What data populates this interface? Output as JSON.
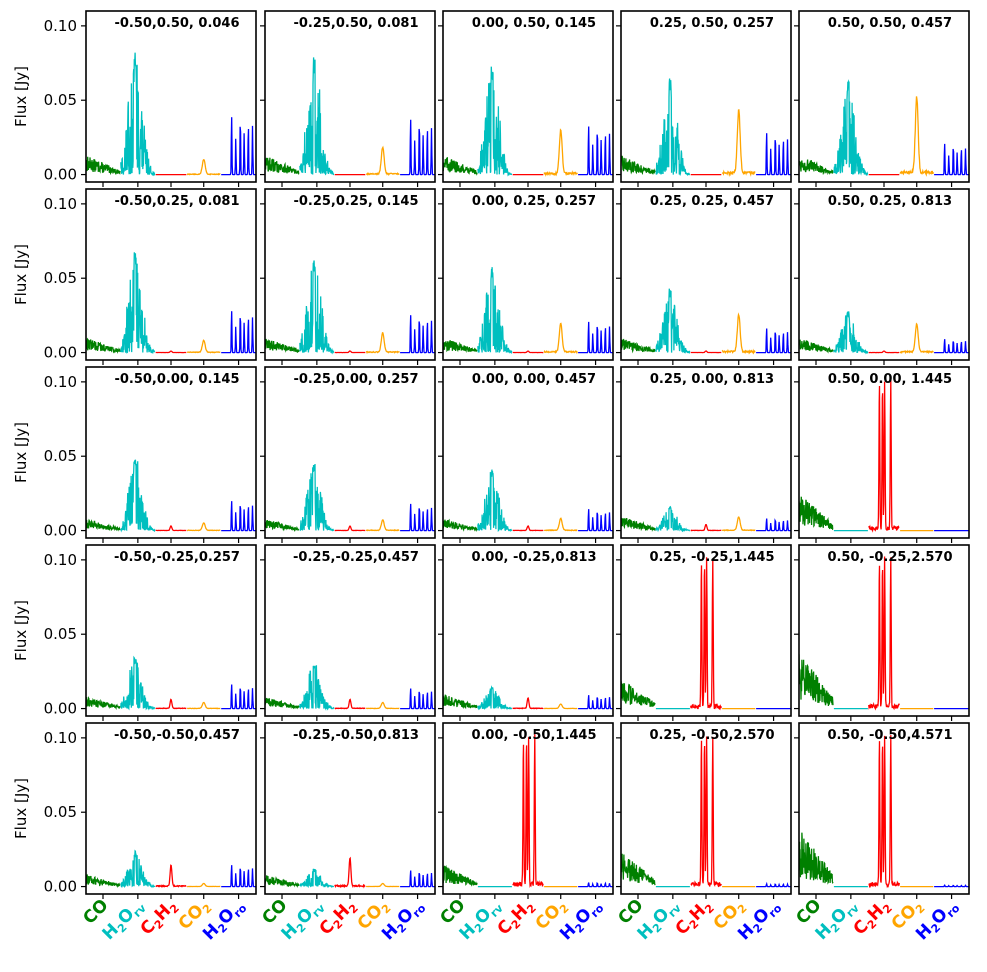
{
  "figure": {
    "ylabel": "Flux [Jy]",
    "yticks": [
      "0.00",
      "0.05",
      "0.10"
    ],
    "species_labels": [
      {
        "id": "co",
        "base": "CO",
        "sub": "",
        "after": "",
        "sub2": "",
        "color": "#008000"
      },
      {
        "id": "h2orv",
        "base": "H",
        "sub": "2",
        "after": "O",
        "sub2": "rv",
        "color": "#00bfbf"
      },
      {
        "id": "c2h2",
        "base": "C",
        "sub": "2",
        "after": "H",
        "sub2": "2",
        "color": "#ff0000"
      },
      {
        "id": "co2",
        "base": "CO",
        "sub": "2",
        "after": "",
        "sub2": "",
        "color": "#ffa500"
      },
      {
        "id": "h2oro",
        "base": "H",
        "sub": "2",
        "after": "O",
        "sub2": "ro",
        "color": "#0000ff"
      }
    ]
  },
  "chart_data": {
    "type": "line",
    "layout": "5x5 grid of small-multiple spectra panels, shared y axis",
    "ylabel": "Flux [Jy]",
    "ylim": [
      -0.005,
      0.11
    ],
    "yticks": [
      0.0,
      0.05,
      0.1
    ],
    "species": [
      "CO",
      "H2Orv",
      "C2H2",
      "CO2",
      "H2Oro"
    ],
    "species_colors": {
      "CO": "#008000",
      "H2Orv": "#00bfbf",
      "C2H2": "#ff0000",
      "CO2": "#ffa500",
      "H2Oro": "#0000ff"
    },
    "panels": [
      {
        "title": "-0.50,0.50, 0.046",
        "co_peak": 0.013,
        "h2orv_peak": 0.084,
        "c2h2_peak": 0.0,
        "co2_peak": 0.01,
        "h2oro_peak": 0.043
      },
      {
        "title": "-0.25,0.50, 0.081",
        "co_peak": 0.013,
        "h2orv_peak": 0.08,
        "c2h2_peak": 0.0,
        "co2_peak": 0.018,
        "h2oro_peak": 0.041
      },
      {
        "title": "0.00, 0.50, 0.145",
        "co_peak": 0.013,
        "h2orv_peak": 0.074,
        "c2h2_peak": 0.0,
        "co2_peak": 0.029,
        "h2oro_peak": 0.036
      },
      {
        "title": "0.25, 0.50, 0.257",
        "co_peak": 0.013,
        "h2orv_peak": 0.066,
        "c2h2_peak": 0.0,
        "co2_peak": 0.042,
        "h2oro_peak": 0.031
      },
      {
        "title": "0.50, 0.50, 0.457",
        "co_peak": 0.013,
        "h2orv_peak": 0.063,
        "c2h2_peak": 0.0,
        "co2_peak": 0.051,
        "h2oro_peak": 0.023
      },
      {
        "title": "-0.50,0.25, 0.081",
        "co_peak": 0.01,
        "h2orv_peak": 0.068,
        "c2h2_peak": 0.001,
        "co2_peak": 0.008,
        "h2oro_peak": 0.031
      },
      {
        "title": "-0.25,0.25, 0.145",
        "co_peak": 0.01,
        "h2orv_peak": 0.064,
        "c2h2_peak": 0.001,
        "co2_peak": 0.013,
        "h2oro_peak": 0.028
      },
      {
        "title": "0.00, 0.25, 0.257",
        "co_peak": 0.01,
        "h2orv_peak": 0.058,
        "c2h2_peak": 0.001,
        "co2_peak": 0.019,
        "h2oro_peak": 0.023
      },
      {
        "title": "0.25, 0.25, 0.457",
        "co_peak": 0.01,
        "h2orv_peak": 0.043,
        "c2h2_peak": 0.001,
        "co2_peak": 0.025,
        "h2oro_peak": 0.018
      },
      {
        "title": "0.50, 0.25, 0.813",
        "co_peak": 0.01,
        "h2orv_peak": 0.028,
        "c2h2_peak": 0.001,
        "co2_peak": 0.019,
        "h2oro_peak": 0.01
      },
      {
        "title": "-0.50,0.00, 0.145",
        "co_peak": 0.008,
        "h2orv_peak": 0.051,
        "c2h2_peak": 0.003,
        "co2_peak": 0.005,
        "h2oro_peak": 0.022
      },
      {
        "title": "-0.25,0.00, 0.257",
        "co_peak": 0.008,
        "h2orv_peak": 0.046,
        "c2h2_peak": 0.003,
        "co2_peak": 0.007,
        "h2oro_peak": 0.02
      },
      {
        "title": "0.00, 0.00, 0.457",
        "co_peak": 0.008,
        "h2orv_peak": 0.041,
        "c2h2_peak": 0.003,
        "co2_peak": 0.008,
        "h2oro_peak": 0.016
      },
      {
        "title": "0.25, 0.00, 0.813",
        "co_peak": 0.01,
        "h2orv_peak": 0.016,
        "c2h2_peak": 0.004,
        "co2_peak": 0.009,
        "h2oro_peak": 0.009
      },
      {
        "title": "0.50, 0.00, 1.445",
        "co_peak": 0.025,
        "h2orv_peak": 0.0,
        "c2h2_peak": 0.1,
        "co2_peak": 0.0,
        "h2oro_peak": 0.0
      },
      {
        "title": "-0.50,-0.25,0.257",
        "co_peak": 0.008,
        "h2orv_peak": 0.035,
        "c2h2_peak": 0.006,
        "co2_peak": 0.004,
        "h2oro_peak": 0.018
      },
      {
        "title": "-0.25,-0.25,0.457",
        "co_peak": 0.008,
        "h2orv_peak": 0.031,
        "c2h2_peak": 0.006,
        "co2_peak": 0.004,
        "h2oro_peak": 0.015
      },
      {
        "title": "0.00, -0.25,0.813",
        "co_peak": 0.01,
        "h2orv_peak": 0.015,
        "c2h2_peak": 0.007,
        "co2_peak": 0.003,
        "h2oro_peak": 0.01
      },
      {
        "title": "0.25, -0.25,1.445",
        "co_peak": 0.02,
        "h2orv_peak": 0.0,
        "c2h2_peak": 0.1,
        "co2_peak": 0.0,
        "h2oro_peak": 0.0
      },
      {
        "title": "0.50, -0.25,2.570",
        "co_peak": 0.038,
        "h2orv_peak": 0.0,
        "c2h2_peak": 0.1,
        "co2_peak": 0.0,
        "h2oro_peak": 0.0
      },
      {
        "title": "-0.50,-0.50,0.457",
        "co_peak": 0.008,
        "h2orv_peak": 0.024,
        "c2h2_peak": 0.014,
        "co2_peak": 0.002,
        "h2oro_peak": 0.016
      },
      {
        "title": "-0.25,-0.50,0.813",
        "co_peak": 0.008,
        "h2orv_peak": 0.012,
        "c2h2_peak": 0.019,
        "co2_peak": 0.002,
        "h2oro_peak": 0.012
      },
      {
        "title": "0.00, -0.50,1.445",
        "co_peak": 0.015,
        "h2orv_peak": 0.0,
        "c2h2_peak": 0.1,
        "co2_peak": 0.0,
        "h2oro_peak": 0.003
      },
      {
        "title": "0.25, -0.50,2.570",
        "co_peak": 0.024,
        "h2orv_peak": 0.0,
        "c2h2_peak": 0.1,
        "co2_peak": 0.0,
        "h2oro_peak": 0.002
      },
      {
        "title": "0.50, -0.50,4.571",
        "co_peak": 0.04,
        "h2orv_peak": 0.0,
        "c2h2_peak": 0.1,
        "co2_peak": 0.0,
        "h2oro_peak": 0.001
      }
    ]
  }
}
